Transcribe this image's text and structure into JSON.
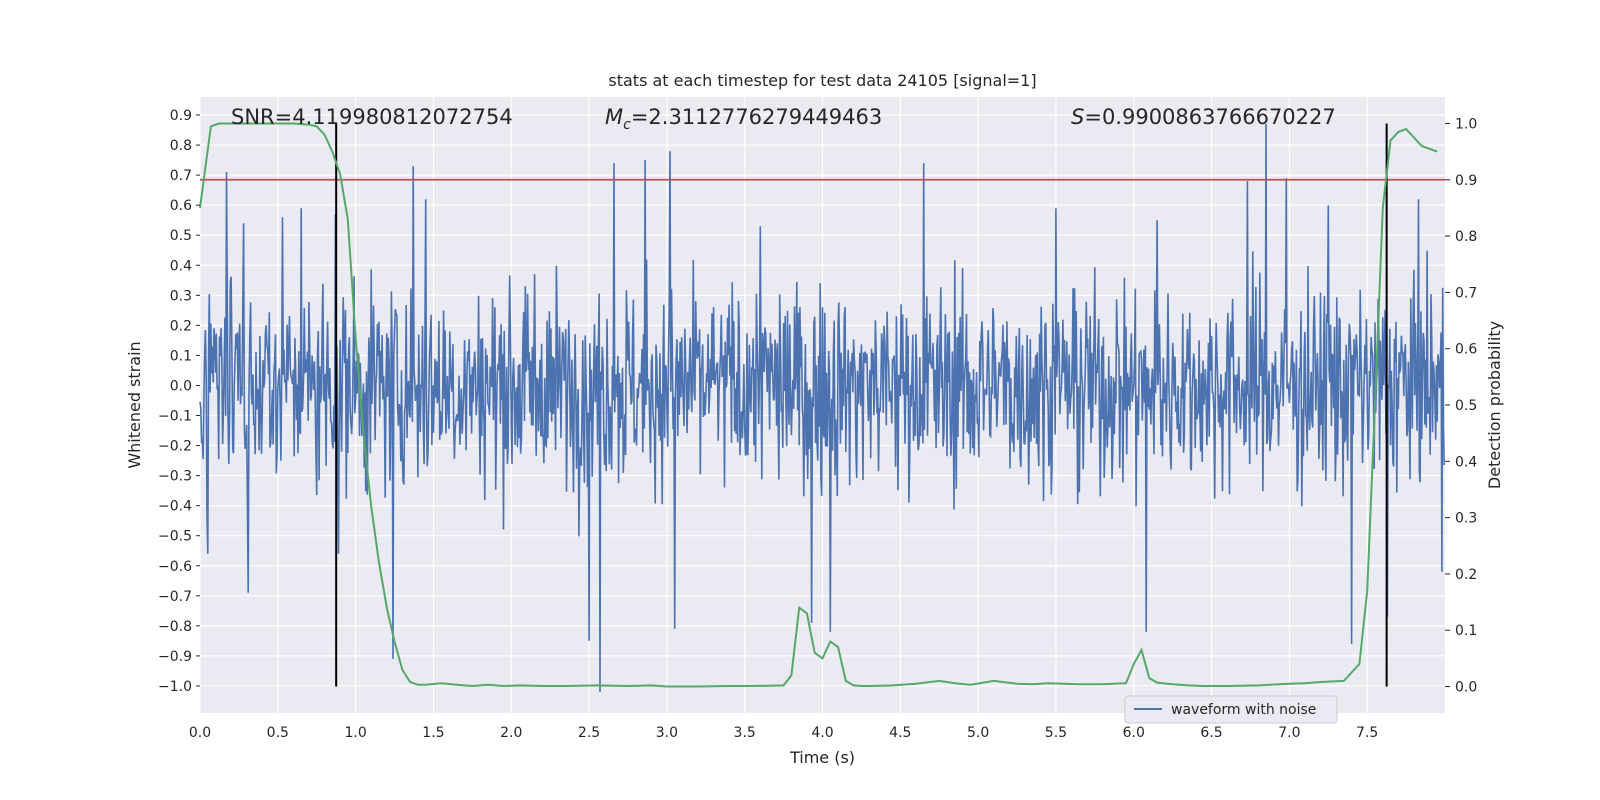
{
  "chart_data": {
    "type": "line",
    "title": "stats at each timestep for test data 24105 [signal=1]",
    "xlabel": "Time (s)",
    "ylabel": "Whitened strain",
    "y2label": "Detection probability",
    "xlim": [
      0.0,
      8.0
    ],
    "ylim": [
      -1.09,
      0.96
    ],
    "y2lim": [
      -0.047,
      1.047
    ],
    "x_ticks": [
      "0.0",
      "0.5",
      "1.0",
      "1.5",
      "2.0",
      "2.5",
      "3.0",
      "3.5",
      "4.0",
      "4.5",
      "5.0",
      "5.5",
      "6.0",
      "6.5",
      "7.0",
      "7.5"
    ],
    "y_ticks": [
      "0.9",
      "0.8",
      "0.7",
      "0.6",
      "0.5",
      "0.4",
      "0.3",
      "0.2",
      "0.1",
      "0.0",
      "-0.1",
      "-0.2",
      "-0.3",
      "-0.4",
      "-0.5",
      "-0.6",
      "-0.7",
      "-0.8",
      "-0.9",
      "-1.0"
    ],
    "y2_ticks": [
      "1.0",
      "0.9",
      "0.8",
      "0.7",
      "0.6",
      "0.5",
      "0.4",
      "0.3",
      "0.2",
      "0.1",
      "0.0"
    ],
    "grid": true,
    "legend_position": "bottom-right",
    "annotations": {
      "snr": "SNR=4.119980812072754",
      "mc_symbol": "M",
      "mc_sub": "c",
      "mc_value": "=2.3112776279449463",
      "s_symbol": "S",
      "s_value": "=0.9900863766670227"
    },
    "threshold_line": {
      "value": 0.9,
      "axis": "y2",
      "color": "#c44e52"
    },
    "vertical_lines": [
      0.875,
      7.625
    ],
    "series": [
      {
        "name": "waveform with noise",
        "axis": "y",
        "color": "#4c72b0",
        "kind": "noise",
        "typical_amplitude": 0.3,
        "peaks": [
          {
            "x": 0.05,
            "y": -0.56
          },
          {
            "x": 0.17,
            "y": 0.71
          },
          {
            "x": 0.28,
            "y": 0.54
          },
          {
            "x": 0.31,
            "y": -0.69
          },
          {
            "x": 0.53,
            "y": 0.56
          },
          {
            "x": 0.65,
            "y": 0.59
          },
          {
            "x": 0.87,
            "y": 0.57
          },
          {
            "x": 0.89,
            "y": -0.56
          },
          {
            "x": 1.24,
            "y": -0.91
          },
          {
            "x": 1.37,
            "y": 0.73
          },
          {
            "x": 1.45,
            "y": 0.62
          },
          {
            "x": 2.5,
            "y": -0.85
          },
          {
            "x": 2.57,
            "y": -1.02
          },
          {
            "x": 2.66,
            "y": 0.74
          },
          {
            "x": 2.86,
            "y": 0.75
          },
          {
            "x": 3.02,
            "y": 0.78
          },
          {
            "x": 3.05,
            "y": -0.81
          },
          {
            "x": 3.6,
            "y": 0.53
          },
          {
            "x": 3.93,
            "y": -0.79
          },
          {
            "x": 4.05,
            "y": -0.82
          },
          {
            "x": 4.65,
            "y": 0.74
          },
          {
            "x": 5.5,
            "y": 0.59
          },
          {
            "x": 6.08,
            "y": -0.82
          },
          {
            "x": 6.15,
            "y": 0.55
          },
          {
            "x": 6.73,
            "y": 0.68
          },
          {
            "x": 6.85,
            "y": 0.87
          },
          {
            "x": 6.98,
            "y": 0.69
          },
          {
            "x": 7.25,
            "y": 0.6
          },
          {
            "x": 7.4,
            "y": -0.86
          },
          {
            "x": 7.63,
            "y": -0.77
          },
          {
            "x": 7.83,
            "y": 0.62
          },
          {
            "x": 7.98,
            "y": -0.62
          }
        ]
      },
      {
        "name": "",
        "axis": "y2",
        "color": "#55a868",
        "x": [
          0.0,
          0.07,
          0.12,
          0.2,
          0.4,
          0.6,
          0.7,
          0.75,
          0.8,
          0.85,
          0.9,
          0.95,
          1.0,
          1.05,
          1.1,
          1.15,
          1.2,
          1.25,
          1.3,
          1.35,
          1.4,
          1.45,
          1.55,
          1.65,
          1.75,
          1.85,
          1.95,
          2.05,
          2.2,
          2.35,
          2.55,
          2.75,
          2.9,
          3.0,
          3.2,
          3.4,
          3.55,
          3.75,
          3.8,
          3.85,
          3.9,
          3.95,
          4.0,
          4.05,
          4.1,
          4.15,
          4.2,
          4.25,
          4.3,
          4.45,
          4.6,
          4.75,
          4.85,
          4.95,
          5.1,
          5.25,
          5.35,
          5.45,
          5.55,
          5.65,
          5.8,
          5.95,
          6.0,
          6.05,
          6.1,
          6.15,
          6.25,
          6.35,
          6.45,
          6.6,
          6.8,
          7.0,
          7.1,
          7.2,
          7.35,
          7.45,
          7.5,
          7.55,
          7.6,
          7.65,
          7.7,
          7.75,
          7.8,
          7.85,
          7.9,
          7.95
        ],
        "y": [
          0.85,
          0.995,
          1.0,
          1.0,
          1.0,
          1.0,
          0.998,
          0.995,
          0.98,
          0.95,
          0.91,
          0.83,
          0.62,
          0.45,
          0.32,
          0.22,
          0.14,
          0.08,
          0.03,
          0.008,
          0.003,
          0.003,
          0.006,
          0.003,
          0.001,
          0.003,
          0.001,
          0.002,
          0.001,
          0.001,
          0.002,
          0.001,
          0.002,
          0.0,
          0.0,
          0.001,
          0.001,
          0.002,
          0.02,
          0.14,
          0.13,
          0.06,
          0.05,
          0.08,
          0.07,
          0.01,
          0.002,
          0.001,
          0.001,
          0.002,
          0.005,
          0.01,
          0.006,
          0.003,
          0.01,
          0.005,
          0.004,
          0.006,
          0.005,
          0.004,
          0.004,
          0.006,
          0.04,
          0.065,
          0.015,
          0.007,
          0.004,
          0.002,
          0.001,
          0.001,
          0.002,
          0.005,
          0.006,
          0.008,
          0.01,
          0.04,
          0.17,
          0.5,
          0.85,
          0.97,
          0.985,
          0.99,
          0.975,
          0.96,
          0.955,
          0.95
        ]
      }
    ]
  }
}
